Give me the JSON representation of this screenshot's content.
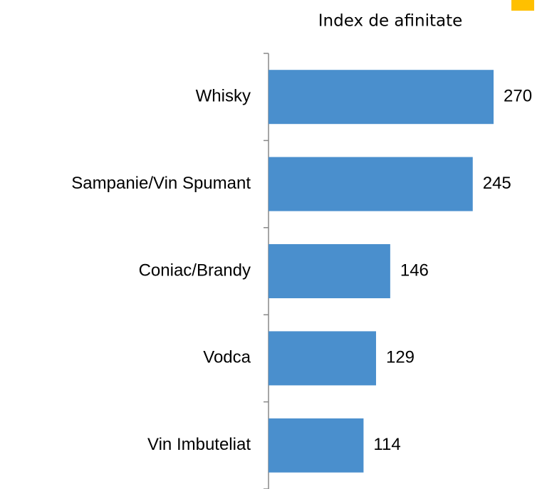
{
  "chart_data": {
    "type": "bar",
    "orientation": "horizontal",
    "title": "Index de afinitate",
    "categories": [
      "Whisky",
      "Sampanie/Vin Spumant",
      "Coniac/Brandy",
      "Vodca",
      "Vin Imbuteliat"
    ],
    "values": [
      270,
      245,
      146,
      129,
      114
    ],
    "color": "#4a8fcd"
  }
}
